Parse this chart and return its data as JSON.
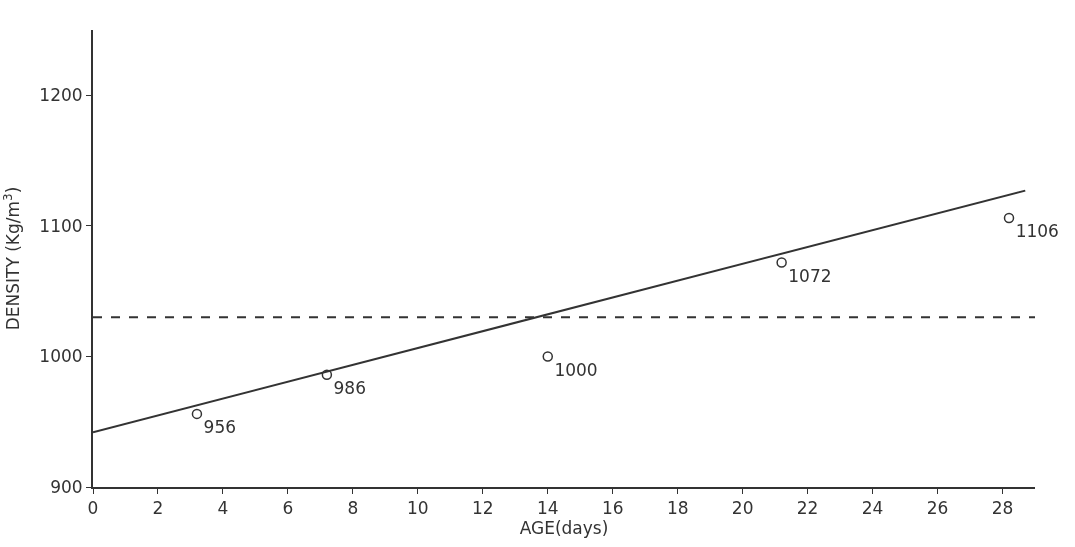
{
  "chart_data": {
    "type": "scatter",
    "xlabel": "AGE(days)",
    "ylabel": "DENSITY (Kg/m$^{3}$)",
    "xlim": [
      0,
      29
    ],
    "xticks": [
      0,
      2,
      4,
      6,
      8,
      10,
      12,
      14,
      16,
      18,
      20,
      22,
      24,
      26,
      28
    ],
    "ylim": [
      900,
      1250
    ],
    "yticks": [
      900,
      1000,
      1100,
      1200
    ],
    "series": [
      {
        "color": "#333333",
        "marker": "circle",
        "x": [
          3.2,
          7.2,
          14,
          21.2,
          28.2
        ],
        "values": [
          956,
          986,
          1000,
          1072,
          1106
        ],
        "value_labels": [
          "956",
          "986",
          "1000",
          "1072",
          "1106"
        ]
      },
      {
        "type": "line",
        "line_style": "solid",
        "color": "#333333",
        "x": [
          0,
          28.7
        ],
        "values": [
          942,
          1127
        ]
      }
    ],
    "ref_lines": [
      {
        "axis": "y",
        "value": 1030,
        "line_style": "dashed",
        "color": "#333333"
      }
    ],
    "legend": false
  }
}
